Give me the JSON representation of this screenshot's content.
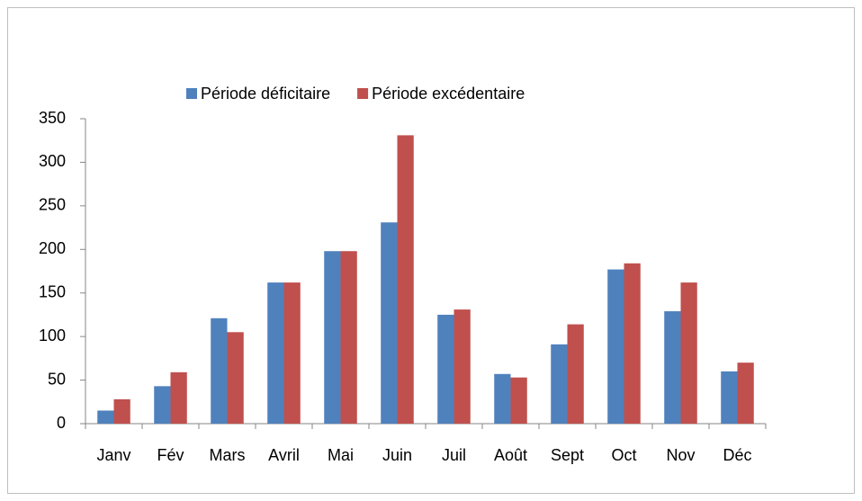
{
  "chart_data": {
    "type": "bar",
    "categories": [
      "Janv",
      "Fév",
      "Mars",
      "Avril",
      "Mai",
      "Juin",
      "Juil",
      "Août",
      "Sept",
      "Oct",
      "Nov",
      "Déc"
    ],
    "series": [
      {
        "name": "Période déficitaire",
        "color": "#4f81bd",
        "values": [
          15,
          43,
          121,
          162,
          198,
          231,
          125,
          57,
          91,
          177,
          129,
          60
        ]
      },
      {
        "name": "Période excédentaire",
        "color": "#c0504d",
        "values": [
          28,
          59,
          105,
          162,
          198,
          331,
          131,
          53,
          114,
          184,
          162,
          70
        ]
      }
    ],
    "ylim": [
      0,
      350
    ],
    "yticks": [
      0,
      50,
      100,
      150,
      200,
      250,
      300,
      350
    ],
    "grid": false,
    "legend": "top"
  }
}
